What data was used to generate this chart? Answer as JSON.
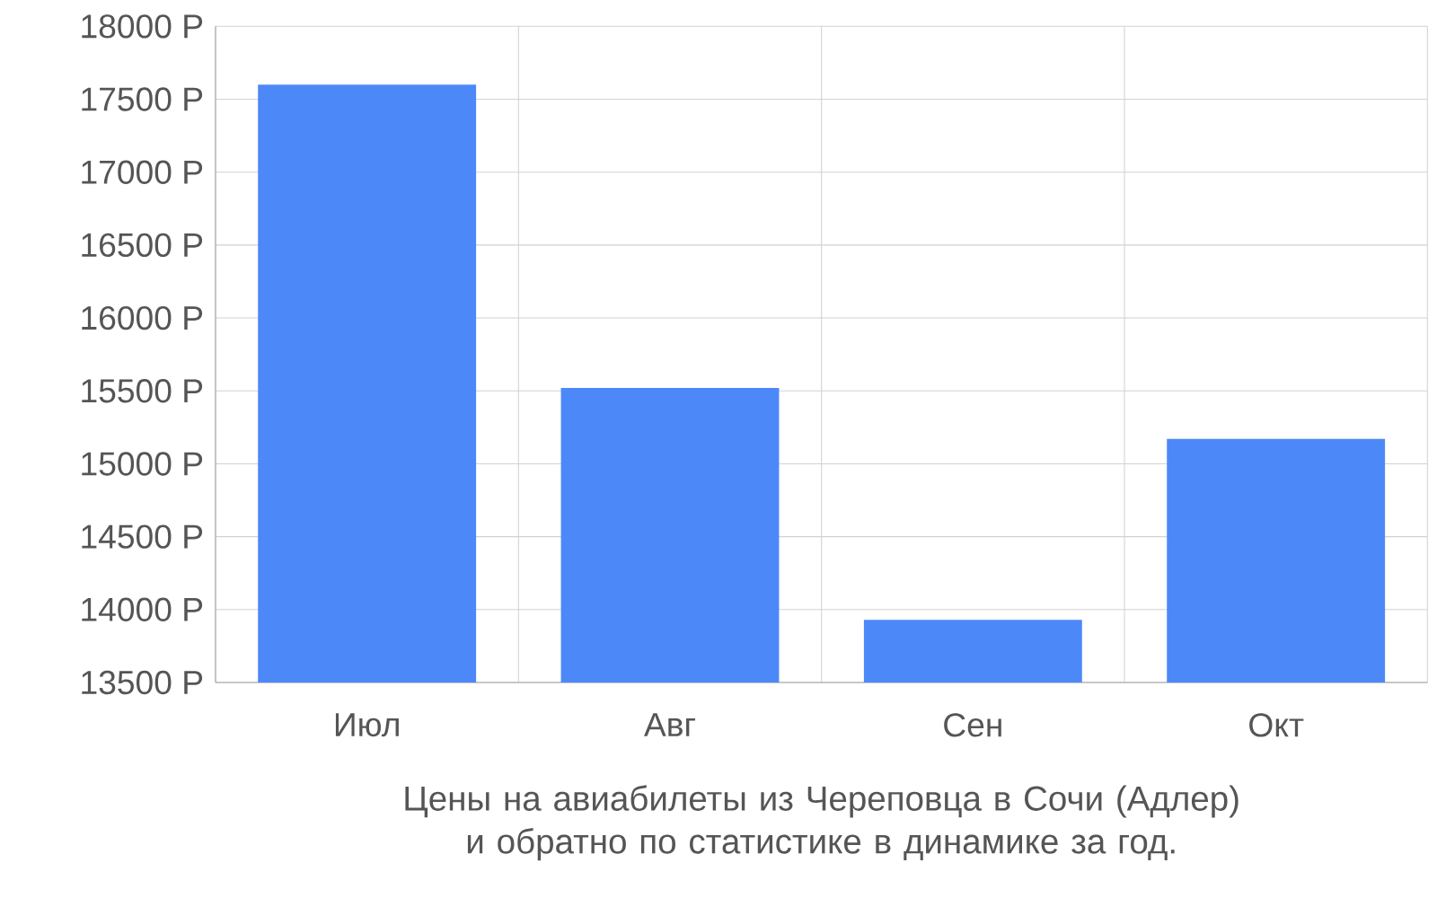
{
  "chart_data": {
    "type": "bar",
    "categories": [
      "Июл",
      "Авг",
      "Сен",
      "Окт"
    ],
    "values": [
      17600,
      15520,
      13930,
      15170
    ],
    "color": "#4d88f9",
    "ylim": [
      13500,
      18000
    ],
    "yticks": [
      {
        "value": 13500,
        "label": "13500 Р"
      },
      {
        "value": 14000,
        "label": "14000 Р"
      },
      {
        "value": 14500,
        "label": "14500 Р"
      },
      {
        "value": 15000,
        "label": "15000 Р"
      },
      {
        "value": 15500,
        "label": "15500 Р"
      },
      {
        "value": 16000,
        "label": "16000 Р"
      },
      {
        "value": 16500,
        "label": "16500 Р"
      },
      {
        "value": 17000,
        "label": "17000 Р"
      },
      {
        "value": 17500,
        "label": "17500 Р"
      },
      {
        "value": 18000,
        "label": "18000 Р"
      }
    ],
    "grid": true,
    "annotations": [
      "Цены на авиабилеты из Череповца в Сочи (Адлер) и обратно по статистике в динамике за год."
    ]
  }
}
